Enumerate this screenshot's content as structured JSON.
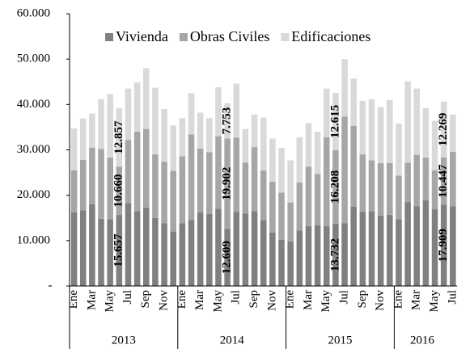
{
  "chart_data": {
    "type": "stacked_bar",
    "categories": [
      "Ene",
      null,
      "Mar",
      null,
      "May",
      null,
      "Jul",
      null,
      "Sep",
      null,
      "Nov",
      null,
      "Ene",
      null,
      "Mar",
      null,
      "May",
      null,
      "Jul",
      null,
      "Sep",
      null,
      "Nov",
      null,
      "Ene",
      null,
      "Mar",
      null,
      "May",
      null,
      "Jul",
      null,
      "Sep",
      null,
      "Nov",
      null,
      "Ene",
      null,
      "Mar",
      null,
      "May",
      null,
      "Jul"
    ],
    "years": [
      "2013",
      "2014",
      "2015",
      "2016"
    ],
    "series": [
      {
        "name": "Vivienda",
        "color": "#808080",
        "values": [
          16200,
          16700,
          18000,
          14800,
          14700,
          15657,
          18300,
          16500,
          17300,
          15000,
          13800,
          12000,
          13800,
          14500,
          16200,
          15900,
          17000,
          12609,
          16300,
          16000,
          16500,
          14500,
          11800,
          10200,
          9800,
          12200,
          13200,
          13400,
          13200,
          13732,
          13800,
          17500,
          16400,
          16500,
          15500,
          15700,
          14700,
          18500,
          17600,
          18900,
          16900,
          17909,
          17600
        ],
        "value_labels": [
          null,
          null,
          null,
          null,
          null,
          "15.657",
          null,
          null,
          null,
          null,
          null,
          null,
          null,
          null,
          null,
          null,
          null,
          "12.609",
          null,
          null,
          null,
          null,
          null,
          null,
          null,
          null,
          null,
          null,
          null,
          "13.732",
          null,
          null,
          null,
          null,
          null,
          null,
          null,
          null,
          null,
          null,
          null,
          "17.909",
          null
        ]
      },
      {
        "name": "Obras Civiles",
        "color": "#a6a6a6",
        "values": [
          9300,
          11100,
          12500,
          15400,
          13600,
          10660,
          13900,
          17500,
          17300,
          14000,
          13600,
          13400,
          14800,
          18900,
          14100,
          13600,
          16000,
          19902,
          16400,
          11200,
          14100,
          11000,
          11200,
          10400,
          8600,
          10600,
          13100,
          11300,
          19600,
          16208,
          23500,
          17800,
          12600,
          11200,
          11600,
          11400,
          9600,
          8700,
          11300,
          9400,
          8600,
          10447,
          12000
        ],
        "value_labels": [
          null,
          null,
          null,
          null,
          null,
          "10.660",
          null,
          null,
          null,
          null,
          null,
          null,
          null,
          null,
          null,
          null,
          null,
          "19.902",
          null,
          null,
          null,
          null,
          null,
          null,
          null,
          null,
          null,
          null,
          null,
          "16.208",
          null,
          null,
          null,
          null,
          null,
          null,
          null,
          null,
          null,
          null,
          null,
          "10.447",
          null
        ]
      },
      {
        "name": "Edificaciones",
        "color": "#d9d9d9",
        "values": [
          9200,
          9100,
          7500,
          11000,
          14000,
          12857,
          11300,
          10900,
          13400,
          14700,
          11600,
          10000,
          8400,
          9100,
          7900,
          7500,
          10800,
          7753,
          11900,
          7400,
          7200,
          11600,
          9500,
          9800,
          9300,
          10000,
          9600,
          9300,
          10700,
          12615,
          12700,
          10400,
          11800,
          13500,
          12300,
          13900,
          11500,
          17900,
          14600,
          10900,
          10900,
          12269,
          8200
        ],
        "value_labels": [
          null,
          null,
          null,
          null,
          null,
          "12.857",
          null,
          null,
          null,
          null,
          null,
          null,
          null,
          null,
          null,
          null,
          null,
          "7.753",
          null,
          null,
          null,
          null,
          null,
          null,
          null,
          null,
          null,
          null,
          null,
          "12.615",
          null,
          null,
          null,
          null,
          null,
          null,
          null,
          null,
          null,
          null,
          null,
          "12.269",
          null
        ]
      }
    ],
    "ylim": [
      0,
      60000
    ],
    "yticks": [
      {
        "value": 0,
        "label": "-"
      },
      {
        "value": 10000,
        "label": "10.000"
      },
      {
        "value": 20000,
        "label": "20.000"
      },
      {
        "value": 30000,
        "label": "30.000"
      },
      {
        "value": 40000,
        "label": "40.000"
      },
      {
        "value": 50000,
        "label": "50.000"
      },
      {
        "value": 60000,
        "label": "60.000"
      }
    ],
    "grid": false,
    "legend": "top"
  }
}
